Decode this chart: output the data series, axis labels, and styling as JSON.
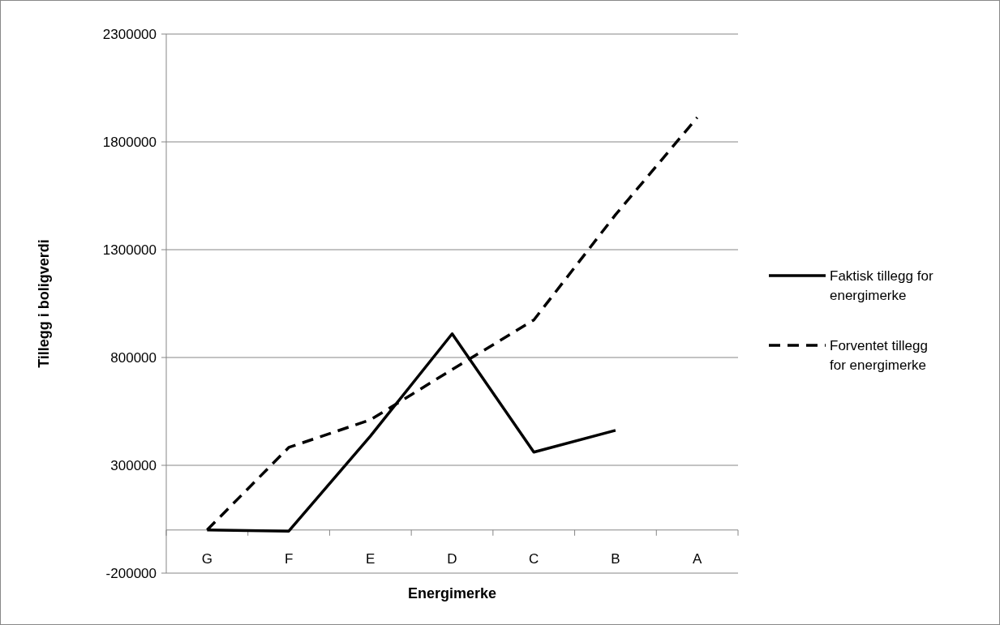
{
  "chart_data": {
    "type": "line",
    "xlabel": "Energimerke",
    "ylabel": "Tillegg i boligverdi",
    "categories": [
      "G",
      "F",
      "E",
      "D",
      "C",
      "B",
      "A"
    ],
    "series": [
      {
        "name": "Faktisk tillegg for energimerke",
        "color": "#000000",
        "line_style": "solid",
        "values": [
          0,
          -5000,
          436000,
          910000,
          361000,
          462000,
          null
        ]
      },
      {
        "name": "Forventet tillegg for energimerke",
        "color": "#000000",
        "line_style": "dashed",
        "values": [
          0,
          383000,
          511000,
          744000,
          974000,
          1462000,
          1913000
        ]
      }
    ],
    "ylim": [
      -200000,
      2300000
    ],
    "yticks": [
      -200000,
      300000,
      800000,
      1300000,
      1800000,
      2300000
    ],
    "grid": "y",
    "legend": "right",
    "marker": "none"
  }
}
